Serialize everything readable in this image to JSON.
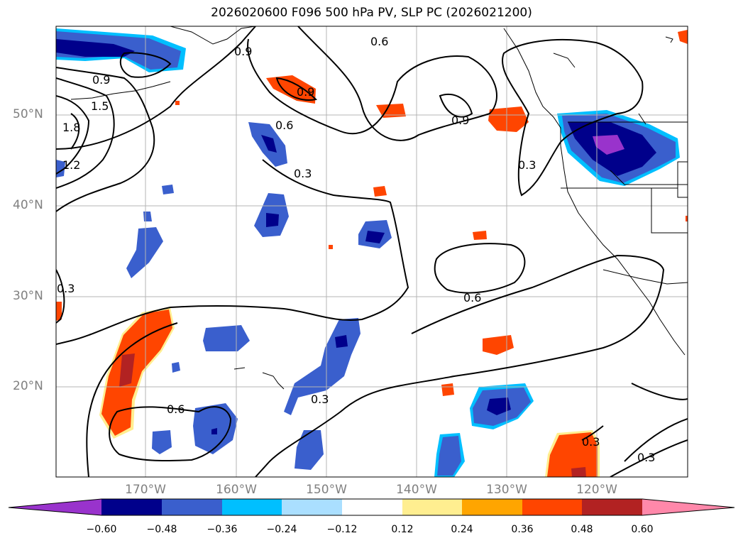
{
  "title": "2026020600 F096 500 hPa PV, SLP PC (2026021200)",
  "lat_labels": [
    "50°N",
    "40°N",
    "30°N",
    "20°N"
  ],
  "lon_labels": [
    "170°W",
    "160°W",
    "150°W",
    "140°W",
    "130°W",
    "120°W"
  ],
  "contour_labels": [
    "0.9",
    "0.6",
    "0.9",
    "1.5",
    "1.8",
    "1.2",
    "0.9",
    "0.6",
    "0.3",
    "0.9",
    "0.3",
    "0.3",
    "0.6",
    "0.6",
    "0.3",
    "0.3",
    "0.3"
  ],
  "colorbar": {
    "tick_labels": [
      "−0.60",
      "−0.48",
      "−0.36",
      "−0.24",
      "−0.12",
      "0.12",
      "0.24",
      "0.36",
      "0.48",
      "0.60"
    ],
    "colors": [
      "#9933cc",
      "#00008b",
      "#3a5fcd",
      "#00bfff",
      "#aadfff",
      "#ffffff",
      "#ffee90",
      "#ffa500",
      "#ff4500",
      "#b22222",
      "#ff88aa"
    ]
  }
}
